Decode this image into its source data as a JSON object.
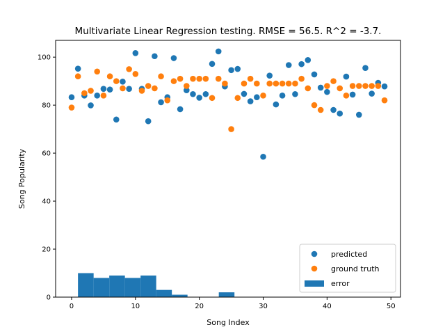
{
  "chart_data": {
    "type": "scatter",
    "title": "Multivariate Linear Regression testing. RMSE = 56.5. R^2 = -3.7.",
    "xlabel": "Song Index",
    "ylabel": "Song Popularity",
    "xlim": [
      -2.5,
      51.5
    ],
    "ylim": [
      0,
      107
    ],
    "xticks": [
      0,
      10,
      20,
      30,
      40,
      50
    ],
    "yticks": [
      0,
      20,
      40,
      60,
      80,
      100
    ],
    "grid": false,
    "legend_position": "lower-right",
    "series": [
      {
        "name": "predicted",
        "kind": "scatter",
        "color": "#1f77b4",
        "x": [
          0,
          1,
          2,
          3,
          4,
          5,
          6,
          7,
          8,
          9,
          10,
          11,
          12,
          13,
          14,
          15,
          16,
          17,
          18,
          19,
          20,
          21,
          22,
          23,
          24,
          25,
          26,
          27,
          28,
          29,
          30,
          31,
          32,
          33,
          34,
          35,
          36,
          37,
          38,
          39,
          40,
          41,
          42,
          43,
          44,
          45,
          46,
          47,
          48,
          49
        ],
        "y": [
          83.3,
          95.2,
          84.0,
          79.9,
          84.0,
          86.8,
          86.5,
          74.0,
          89.8,
          86.8,
          101.7,
          86.8,
          73.3,
          100.4,
          81.2,
          83.3,
          99.6,
          78.3,
          86.2,
          84.6,
          83.1,
          84.6,
          97.2,
          102.4,
          87.8,
          94.6,
          95.1,
          84.7,
          81.6,
          83.3,
          58.5,
          92.3,
          80.3,
          84.0,
          96.7,
          84.6,
          97.1,
          98.8,
          92.8,
          87.3,
          85.5,
          78.0,
          76.5,
          91.9,
          84.4,
          76.0,
          95.5,
          84.8,
          89.3,
          87.8
        ]
      },
      {
        "name": "ground truth",
        "kind": "scatter",
        "color": "#ff7f0e",
        "x": [
          0,
          1,
          2,
          3,
          4,
          5,
          6,
          7,
          8,
          9,
          10,
          11,
          12,
          13,
          14,
          15,
          16,
          17,
          18,
          19,
          20,
          21,
          22,
          23,
          24,
          25,
          26,
          27,
          28,
          29,
          30,
          31,
          32,
          33,
          34,
          35,
          36,
          37,
          38,
          39,
          40,
          41,
          42,
          43,
          44,
          45,
          46,
          47,
          48,
          49
        ],
        "y": [
          79,
          92,
          85,
          86,
          94,
          84,
          92,
          90,
          87,
          95,
          93,
          86,
          88,
          87,
          92,
          82,
          90,
          91,
          88,
          91,
          91,
          91,
          83,
          91,
          89,
          70,
          83,
          89,
          91,
          89,
          84,
          89,
          89,
          89,
          89,
          89,
          91,
          87,
          80,
          78,
          88,
          90,
          87,
          84,
          88,
          88,
          88,
          88,
          88,
          82
        ]
      },
      {
        "name": "error",
        "kind": "histogram",
        "color": "#1f77b4",
        "bin_edges": [
          1,
          3.45,
          5.9,
          8.35,
          10.8,
          13.25,
          15.7,
          18.15,
          20.6,
          23.05,
          25.5
        ],
        "counts": [
          10,
          8,
          9,
          8,
          9,
          3,
          1,
          0,
          0,
          2
        ]
      }
    ]
  }
}
